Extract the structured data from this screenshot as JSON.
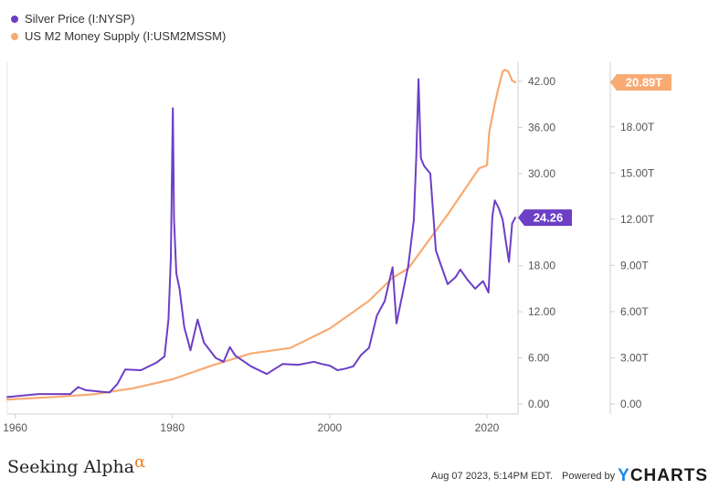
{
  "legend": {
    "series1": "Silver Price (I:NYSP)",
    "series2": "US M2 Money Supply (I:USM2MSSM)"
  },
  "footer": {
    "brand": "Seeking Alpha",
    "brand_mark": "α",
    "timestamp": "Aug 07 2023, 5:14PM EDT.",
    "powered_by": "Powered by",
    "ycharts_y": "Y",
    "ycharts_rest": "CHARTS"
  },
  "chart_data": {
    "type": "line",
    "title": "",
    "x_ticks": [
      "1960",
      "1980",
      "2000",
      "2020"
    ],
    "x_tick_values": [
      1960,
      1980,
      2000,
      2020
    ],
    "xlim": [
      1959,
      2023.6
    ],
    "y_left": {
      "ticks": [
        "0.00",
        "6.00",
        "12.00",
        "18.00",
        "30.00",
        "36.00",
        "42.00"
      ],
      "tick_values": [
        0,
        6,
        12,
        18,
        30,
        36,
        42
      ],
      "ylim": [
        0,
        44.5
      ]
    },
    "y_right": {
      "ticks": [
        "0.00",
        "3.00T",
        "6.00T",
        "9.00T",
        "12.00T",
        "15.00T",
        "18.00T",
        "21.00T"
      ],
      "tick_values": [
        0,
        3,
        6,
        9,
        12,
        15,
        18,
        21
      ],
      "ylim": [
        0,
        22.2
      ],
      "unit": "trillion USD"
    },
    "grid": false,
    "legend_position": "top-left",
    "series": [
      {
        "name": "Silver Price (I:NYSP)",
        "color": "#6c3fc6",
        "axis": "left",
        "last_value_label": "24.26",
        "x": [
          1959,
          1963,
          1967,
          1968,
          1969,
          1971,
          1972,
          1973,
          1974,
          1976,
          1978,
          1979,
          1979.5,
          1979.8,
          1980.05,
          1980.2,
          1980.5,
          1980.9,
          1981.5,
          1982.3,
          1983.2,
          1984,
          1985.5,
          1986.5,
          1987.3,
          1988,
          1990,
          1992,
          1994,
          1996,
          1998,
          1999,
          2000,
          2001,
          2002,
          2003,
          2004,
          2005,
          2006,
          2007,
          2008,
          2008.5,
          2009,
          2010,
          2010.7,
          2011.0,
          2011.3,
          2011.6,
          2012,
          2012.8,
          2013.5,
          2014,
          2015,
          2016,
          2016.6,
          2017.5,
          2018.5,
          2019.5,
          2020.2,
          2020.7,
          2021.0,
          2021.5,
          2022.0,
          2022.5,
          2022.8,
          2023.2,
          2023.6
        ],
        "y": [
          0.9,
          1.3,
          1.3,
          2.2,
          1.8,
          1.6,
          1.5,
          2.6,
          4.5,
          4.4,
          5.4,
          6.2,
          11,
          19,
          38.5,
          24,
          17,
          15,
          10,
          7,
          11,
          8,
          6,
          5.5,
          7.4,
          6.3,
          4.9,
          3.9,
          5.2,
          5.1,
          5.5,
          5.2,
          5.0,
          4.4,
          4.6,
          4.9,
          6.4,
          7.3,
          11.5,
          13.4,
          17.8,
          10.5,
          13.0,
          18.0,
          24.0,
          32,
          42.3,
          32,
          31,
          30,
          20,
          18.5,
          15.6,
          16.5,
          17.5,
          16.2,
          15.0,
          16.0,
          14.5,
          24.5,
          26.5,
          25.5,
          24.0,
          20.5,
          18.5,
          23.5,
          24.26
        ]
      },
      {
        "name": "US M2 Money Supply (I:USM2MSSM)",
        "color": "#f8aa73",
        "axis": "right",
        "last_value_label": "20.89T",
        "x": [
          1959,
          1965,
          1970,
          1975,
          1980,
          1985,
          1990,
          1995,
          2000,
          2005,
          2008,
          2010,
          2015,
          2019,
          2020,
          2020.3,
          2021,
          2021.5,
          2022,
          2022.3,
          2022.7,
          2023.2,
          2023.6
        ],
        "y": [
          0.29,
          0.46,
          0.63,
          1.02,
          1.6,
          2.5,
          3.28,
          3.64,
          4.9,
          6.7,
          8.2,
          8.8,
          12.3,
          15.3,
          15.5,
          17.7,
          19.5,
          20.6,
          21.6,
          21.7,
          21.6,
          21.0,
          20.89
        ]
      }
    ]
  }
}
